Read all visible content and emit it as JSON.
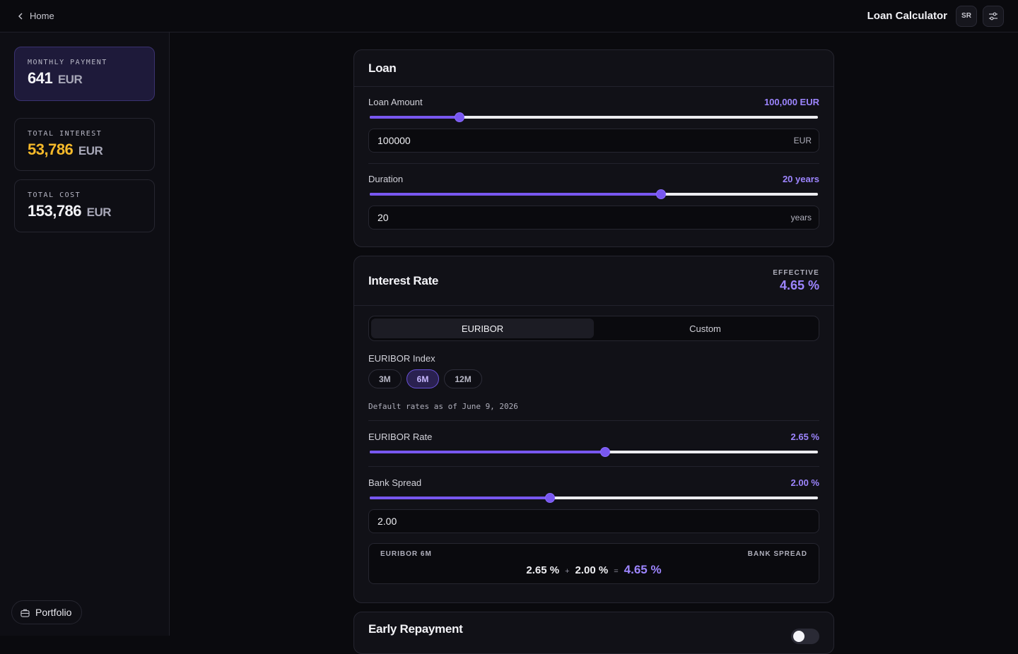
{
  "topbar": {
    "home_label": "Home",
    "app_title": "Loan Calculator",
    "avatar_initials": "SR"
  },
  "sidebar": {
    "stats": [
      {
        "label": "MONTHLY PAYMENT",
        "value": "641",
        "unit": "EUR"
      },
      {
        "label": "TOTAL INTEREST",
        "value": "53,786",
        "unit": "EUR",
        "color": "#f5b92a"
      },
      {
        "label": "TOTAL COST",
        "value": "153,786",
        "unit": "EUR"
      }
    ],
    "portfolio_label": "Portfolio"
  },
  "loan": {
    "title": "Loan",
    "amount": {
      "label": "Loan Amount",
      "display": "100,000 EUR",
      "input_value": "100000",
      "suffix": "EUR",
      "fraction": 0.2
    },
    "duration": {
      "label": "Duration",
      "display": "20 years",
      "input_value": "20",
      "suffix": "years",
      "fraction": 0.65
    }
  },
  "interest": {
    "title": "Interest Rate",
    "effective_label": "EFFECTIVE",
    "effective_value": "4.65 %",
    "tabs": [
      {
        "label": "EURIBOR",
        "active": true
      },
      {
        "label": "Custom",
        "active": false
      }
    ],
    "index_label": "EURIBOR Index",
    "index_options": [
      {
        "label": "3M",
        "active": false
      },
      {
        "label": "6M",
        "active": true
      },
      {
        "label": "12M",
        "active": false
      }
    ],
    "note": "Default rates as of June 9, 2026",
    "euribor_rate": {
      "label": "EURIBOR Rate",
      "display": "2.65 %",
      "fraction": 0.525
    },
    "bank_spread": {
      "label": "Bank Spread",
      "display": "2.00 %",
      "input_value": "2.00",
      "fraction": 0.402
    },
    "formula": {
      "left_label": "EURIBOR 6M",
      "right_label": "BANK SPREAD",
      "a": "2.65 %",
      "plus": "+",
      "b": "2.00 %",
      "equals": "=",
      "result": "4.65 %"
    }
  },
  "early_repayment": {
    "title": "Early Repayment",
    "enabled": false
  },
  "colors": {
    "accent": "#7857f0",
    "accent_text": "#9d85ff",
    "amber": "#f5b92a"
  }
}
